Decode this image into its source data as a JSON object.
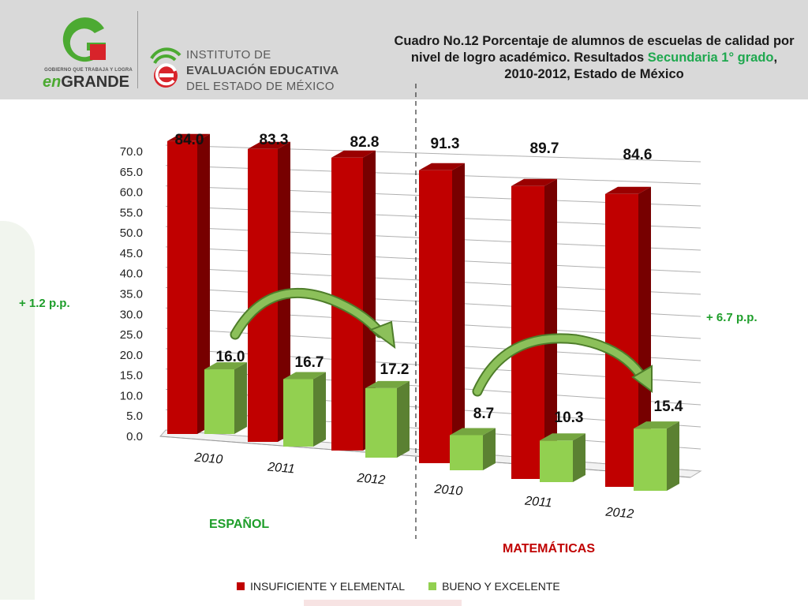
{
  "header": {
    "logo_gobierno_text": "GOBIERNO QUE TRABAJA Y LOGRA",
    "logo_en": "en",
    "logo_grande": "GRANDE",
    "institute_line1": "INSTITUTO DE",
    "institute_line2": "EVALUACIÓN EDUCATIVA",
    "institute_line3": "DEL ESTADO DE MÉXICO",
    "title_part1": "Cuadro No.12 Porcentaje de alumnos de escuelas de calidad por nivel de logro académico. Resultados",
    "title_highlight": "Secundaria 1° grado",
    "title_part2": ", 2010-2012, Estado de México",
    "colors": {
      "header_bg": "#d9d9d9",
      "highlight": "#1fa84f"
    }
  },
  "annotations": {
    "espanol_change": "+ 1.2  p.p.",
    "matematicas_change": "+ 6.7 p.p.",
    "espanol_label": "ESPAÑOL",
    "matematicas_label": "MATEMÁTICAS",
    "espanol_color": "#1e9e2a",
    "matematicas_color": "#c00000"
  },
  "chart_data": {
    "type": "bar",
    "groups": [
      {
        "name": "ESPAÑOL",
        "categories": [
          "2010",
          "2011",
          "2012"
        ]
      },
      {
        "name": "MATEMÁTICAS",
        "categories": [
          "2010",
          "2011",
          "2012"
        ]
      }
    ],
    "series": [
      {
        "name": "INSUFICIENTE Y ELEMENTAL",
        "color": "#c00000",
        "values": [
          84.0,
          83.3,
          82.8,
          91.3,
          89.7,
          84.6
        ],
        "labels": [
          "84.0",
          "83.3",
          "82.8",
          "91.3",
          "89.7",
          "84.6"
        ]
      },
      {
        "name": "BUENO Y EXCELENTE",
        "color": "#92d050",
        "values": [
          16.0,
          16.7,
          17.2,
          8.7,
          10.3,
          15.4
        ],
        "labels": [
          "16.0",
          "16.7",
          "17.2",
          "8.7",
          "10.3",
          "15.4"
        ]
      }
    ],
    "y_ticks": [
      "0.0",
      "5.0",
      "10.0",
      "15.0",
      "20.0",
      "25.0",
      "30.0",
      "35.0",
      "40.0",
      "45.0",
      "50.0",
      "55.0",
      "60.0",
      "65.0",
      "70.0"
    ],
    "ylim": [
      0,
      70
    ],
    "grid": true,
    "three_d": true,
    "legend_position": "bottom"
  }
}
